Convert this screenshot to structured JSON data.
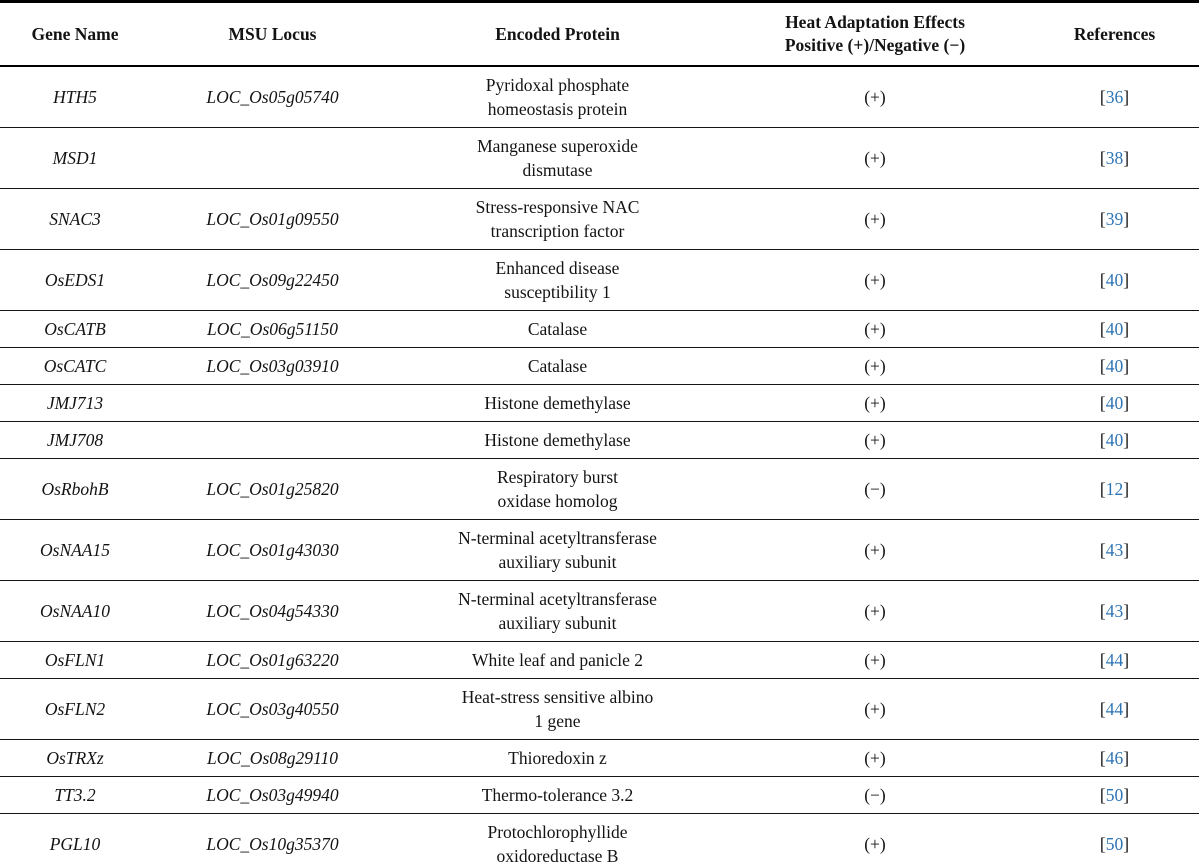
{
  "table": {
    "header": {
      "gene": "Gene Name",
      "locus": "MSU Locus",
      "protein": "Encoded Protein",
      "effect": "Heat Adaptation Effects\nPositive (+)/Negative (−)",
      "references": "References"
    },
    "ref_bracket_open": "[",
    "ref_bracket_close": "]",
    "link_color": "#2d74b5",
    "text_color": "#131313",
    "rows": [
      {
        "gene": "HTH5",
        "locus": "LOC_Os05g05740",
        "protein": "Pyridoxal phosphate\nhomeostasis protein",
        "effect": "(+)",
        "ref": "36"
      },
      {
        "gene": "MSD1",
        "locus": "",
        "protein": "Manganese superoxide\ndismutase",
        "effect": "(+)",
        "ref": "38"
      },
      {
        "gene": "SNAC3",
        "locus": "LOC_Os01g09550",
        "protein": "Stress-responsive NAC\ntranscription factor",
        "effect": "(+)",
        "ref": "39"
      },
      {
        "gene": "OsEDS1",
        "locus": "LOC_Os09g22450",
        "protein": "Enhanced disease\nsusceptibility 1",
        "effect": "(+)",
        "ref": "40"
      },
      {
        "gene": "OsCATB",
        "locus": "LOC_Os06g51150",
        "protein": "Catalase",
        "effect": "(+)",
        "ref": "40"
      },
      {
        "gene": "OsCATC",
        "locus": "LOC_Os03g03910",
        "protein": "Catalase",
        "effect": "(+)",
        "ref": "40"
      },
      {
        "gene": "JMJ713",
        "locus": "",
        "protein": "Histone demethylase",
        "effect": "(+)",
        "ref": "40"
      },
      {
        "gene": "JMJ708",
        "locus": "",
        "protein": "Histone demethylase",
        "effect": "(+)",
        "ref": "40"
      },
      {
        "gene": "OsRbohB",
        "locus": "LOC_Os01g25820",
        "protein": "Respiratory burst\noxidase homolog",
        "effect": "(−)",
        "ref": "12"
      },
      {
        "gene": "OsNAA15",
        "locus": "LOC_Os01g43030",
        "protein": "N-terminal acetyltransferase\nauxiliary subunit",
        "effect": "(+)",
        "ref": "43"
      },
      {
        "gene": "OsNAA10",
        "locus": "LOC_Os04g54330",
        "protein": "N-terminal acetyltransferase\nauxiliary subunit",
        "effect": "(+)",
        "ref": "43"
      },
      {
        "gene": "OsFLN1",
        "locus": "LOC_Os01g63220",
        "protein": "White leaf and panicle 2",
        "effect": "(+)",
        "ref": "44"
      },
      {
        "gene": "OsFLN2",
        "locus": "LOC_Os03g40550",
        "protein": "Heat-stress sensitive albino\n1 gene",
        "effect": "(+)",
        "ref": "44"
      },
      {
        "gene": "OsTRXz",
        "locus": "LOC_Os08g29110",
        "protein": "Thioredoxin z",
        "effect": "(+)",
        "ref": "46"
      },
      {
        "gene": "TT3.2",
        "locus": "LOC_Os03g49940",
        "protein": "Thermo-tolerance 3.2",
        "effect": "(−)",
        "ref": "50"
      },
      {
        "gene": "PGL10",
        "locus": "LOC_Os10g35370",
        "protein": "Protochlorophyllide\noxidoreductase B",
        "effect": "(+)",
        "ref": "50"
      }
    ]
  }
}
